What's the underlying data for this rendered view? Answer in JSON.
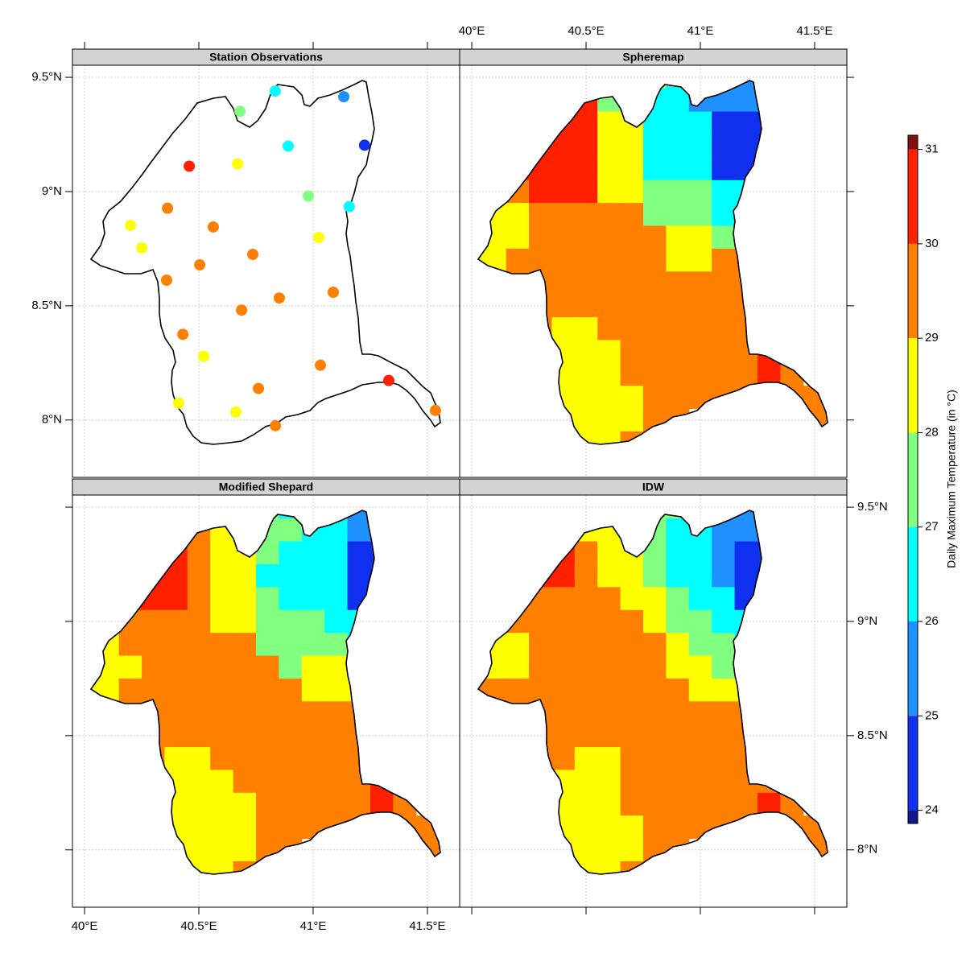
{
  "chart_data": {
    "type": "map-panels",
    "xlim": [
      39.947,
      41.641
    ],
    "ylim": [
      7.749,
      9.553
    ],
    "xticks": [
      {
        "value": 40,
        "label": "40°E"
      },
      {
        "value": 40.5,
        "label": "40.5°E"
      },
      {
        "value": 41,
        "label": "41°E"
      },
      {
        "value": 41.5,
        "label": "41.5°E"
      }
    ],
    "yticks": [
      {
        "value": 8,
        "label": "8°N"
      },
      {
        "value": 8.5,
        "label": "8.5°N"
      },
      {
        "value": 9,
        "label": "9°N"
      },
      {
        "value": 9.5,
        "label": "9.5°N"
      }
    ],
    "grid": true,
    "colorbar": {
      "label": "Daily Maximum Temperature (in °C)",
      "breaks": [
        23.86,
        24,
        25,
        26,
        27,
        28,
        29,
        30,
        31,
        31.15
      ],
      "colors": [
        "#10188c",
        "#1030f0",
        "#1e90ff",
        "#00ffff",
        "#80ff80",
        "#ffff00",
        "#ff8000",
        "#ff2000",
        "#801010"
      ],
      "ticks": [
        24,
        25,
        26,
        27,
        28,
        29,
        30,
        31
      ]
    },
    "grid_lon": [
      40,
      40.1,
      40.2,
      40.3,
      40.4,
      40.5,
      40.6,
      40.7,
      40.8,
      40.9,
      41,
      41.1,
      41.2,
      41.3,
      41.4,
      41.5
    ],
    "grid_lat": [
      9.5,
      9.4,
      9.3,
      9.2,
      9.1,
      9,
      8.9,
      8.8,
      8.7,
      8.6,
      8.5,
      8.4,
      8.3,
      8.2,
      8.1,
      8,
      7.9
    ],
    "panels": [
      {
        "title": "Station Observations",
        "type": "scatter",
        "lon": [
          40.834,
          41.134,
          40.68,
          40.891,
          41.225,
          40.458,
          40.669,
          40.979,
          41.158,
          40.363,
          40.201,
          40.563,
          41.025,
          40.25,
          40.736,
          40.504,
          40.359,
          41.088,
          40.852,
          40.687,
          40.43,
          40.521,
          41.032,
          41.331,
          40.761,
          40.412,
          40.662,
          40.835,
          41.535
        ],
        "lat": [
          9.44,
          9.415,
          9.351,
          9.199,
          9.203,
          9.111,
          9.121,
          8.98,
          8.934,
          8.927,
          8.852,
          8.845,
          8.799,
          8.753,
          8.725,
          8.679,
          8.612,
          8.559,
          8.534,
          8.481,
          8.375,
          8.279,
          8.24,
          8.173,
          8.138,
          8.074,
          8.035,
          7.975,
          8.042
        ],
        "values": [
          26.5,
          25.5,
          27.5,
          26.5,
          24.5,
          30.5,
          28.5,
          27.5,
          26.5,
          29.5,
          28.5,
          29.5,
          28.5,
          28.5,
          29.5,
          29.5,
          29.5,
          29.5,
          29.5,
          29.5,
          29.5,
          28.5,
          29.5,
          30.5,
          29.5,
          28.5,
          28.5,
          29.5,
          29.5
        ]
      },
      {
        "title": "Spheremap",
        "type": "raster",
        "z": [
          [
            null,
            null,
            null,
            null,
            null,
            null,
            27.5,
            27.5,
            27.5,
            26.5,
            26.5,
            25.5,
            25.5,
            null,
            null,
            null
          ],
          [
            null,
            null,
            null,
            null,
            30.5,
            30.5,
            27.5,
            27.5,
            26.5,
            26.5,
            25.5,
            25.5,
            25.5,
            null,
            null,
            null
          ],
          [
            null,
            null,
            null,
            30.5,
            30.5,
            30.5,
            28.5,
            28.5,
            26.5,
            26.5,
            26.5,
            24.5,
            24.5,
            24.5,
            null,
            null
          ],
          [
            null,
            null,
            30.5,
            30.5,
            30.5,
            30.5,
            28.5,
            28.5,
            26.5,
            26.5,
            26.5,
            24.5,
            24.5,
            24.5,
            null,
            null
          ],
          [
            null,
            null,
            30.5,
            30.5,
            30.5,
            30.5,
            28.5,
            28.5,
            26.5,
            26.5,
            26.5,
            24.5,
            24.5,
            24.5,
            null,
            null
          ],
          [
            null,
            null,
            29.5,
            30.5,
            30.5,
            30.5,
            28.5,
            28.5,
            27.5,
            27.5,
            27.5,
            26.5,
            26.5,
            26.5,
            null,
            null
          ],
          [
            null,
            28.5,
            28.5,
            29.5,
            29.5,
            29.5,
            29.5,
            29.5,
            27.5,
            27.5,
            27.5,
            26.5,
            26.5,
            null,
            null,
            null
          ],
          [
            28.5,
            28.5,
            28.5,
            29.5,
            29.5,
            29.5,
            29.5,
            29.5,
            29.5,
            28.5,
            28.5,
            27.5,
            27.5,
            null,
            null,
            null
          ],
          [
            28.5,
            28.5,
            29.5,
            29.5,
            29.5,
            29.5,
            29.5,
            29.5,
            29.5,
            28.5,
            28.5,
            29.5,
            29.5,
            null,
            null,
            null
          ],
          [
            null,
            null,
            29.5,
            29.5,
            29.5,
            29.5,
            29.5,
            29.5,
            29.5,
            29.5,
            29.5,
            29.5,
            29.5,
            null,
            null,
            null
          ],
          [
            null,
            null,
            null,
            29.5,
            29.5,
            29.5,
            29.5,
            29.5,
            29.5,
            29.5,
            29.5,
            29.5,
            29.5,
            null,
            null,
            null
          ],
          [
            null,
            null,
            null,
            29.5,
            28.5,
            28.5,
            29.5,
            29.5,
            29.5,
            29.5,
            29.5,
            29.5,
            29.5,
            null,
            null,
            null
          ],
          [
            null,
            null,
            null,
            28.5,
            28.5,
            28.5,
            28.5,
            29.5,
            29.5,
            29.5,
            29.5,
            29.5,
            29.5,
            30.5,
            null,
            null
          ],
          [
            null,
            null,
            null,
            28.5,
            28.5,
            28.5,
            28.5,
            29.5,
            29.5,
            29.5,
            29.5,
            29.5,
            29.5,
            30.5,
            29.5,
            null
          ],
          [
            null,
            null,
            null,
            28.5,
            28.5,
            28.5,
            28.5,
            28.5,
            29.5,
            29.5,
            29.5,
            29.5,
            29.5,
            29.5,
            29.5,
            29.5
          ],
          [
            null,
            null,
            null,
            28.5,
            28.5,
            28.5,
            28.5,
            28.5,
            29.5,
            29.5,
            null,
            null,
            null,
            null,
            null,
            29.5
          ],
          [
            null,
            null,
            null,
            null,
            28.5,
            28.5,
            28.5,
            29.5,
            null,
            null,
            null,
            null,
            null,
            null,
            null,
            null
          ]
        ]
      },
      {
        "title": "Modified Shepard",
        "type": "raster",
        "z": [
          [
            null,
            null,
            null,
            null,
            null,
            null,
            null,
            27.5,
            27.5,
            26.5,
            null,
            null,
            25.5,
            25.5,
            null,
            null
          ],
          [
            null,
            null,
            null,
            null,
            30.5,
            29.5,
            28.5,
            27.5,
            27.5,
            27.5,
            26.5,
            26.5,
            25.5,
            25.5,
            null,
            null
          ],
          [
            null,
            null,
            null,
            30.5,
            30.5,
            29.5,
            28.5,
            28.5,
            27.5,
            26.5,
            26.5,
            26.5,
            24.5,
            24.5,
            null,
            null
          ],
          [
            null,
            null,
            30.5,
            30.5,
            30.5,
            29.5,
            28.5,
            28.5,
            26.5,
            26.5,
            26.5,
            26.5,
            24.5,
            24.5,
            null,
            null
          ],
          [
            null,
            null,
            30.5,
            30.5,
            30.5,
            29.5,
            28.5,
            28.5,
            27.5,
            26.5,
            26.5,
            26.5,
            24.5,
            24.5,
            null,
            null
          ],
          [
            null,
            null,
            29.5,
            29.5,
            29.5,
            29.5,
            28.5,
            28.5,
            27.5,
            27.5,
            27.5,
            26.5,
            26.5,
            26.5,
            null,
            null
          ],
          [
            null,
            28.5,
            29.5,
            29.5,
            29.5,
            29.5,
            29.5,
            29.5,
            27.5,
            27.5,
            27.5,
            27.5,
            26.5,
            null,
            null,
            null
          ],
          [
            28.5,
            28.5,
            28.5,
            29.5,
            29.5,
            29.5,
            29.5,
            29.5,
            29.5,
            27.5,
            28.5,
            28.5,
            27.5,
            null,
            null,
            null
          ],
          [
            28.5,
            28.5,
            29.5,
            29.5,
            29.5,
            29.5,
            29.5,
            29.5,
            29.5,
            29.5,
            28.5,
            28.5,
            28.5,
            null,
            null,
            null
          ],
          [
            null,
            null,
            29.5,
            29.5,
            29.5,
            29.5,
            29.5,
            29.5,
            29.5,
            29.5,
            29.5,
            29.5,
            29.5,
            null,
            null,
            null
          ],
          [
            null,
            null,
            null,
            29.5,
            29.5,
            29.5,
            29.5,
            29.5,
            29.5,
            29.5,
            29.5,
            29.5,
            29.5,
            null,
            null,
            null
          ],
          [
            null,
            null,
            null,
            29.5,
            28.5,
            28.5,
            29.5,
            29.5,
            29.5,
            29.5,
            29.5,
            29.5,
            29.5,
            null,
            null,
            null
          ],
          [
            null,
            null,
            null,
            28.5,
            28.5,
            28.5,
            28.5,
            29.5,
            29.5,
            29.5,
            29.5,
            29.5,
            29.5,
            30.5,
            29.5,
            null
          ],
          [
            null,
            null,
            null,
            28.5,
            28.5,
            28.5,
            28.5,
            28.5,
            29.5,
            29.5,
            29.5,
            29.5,
            29.5,
            30.5,
            29.5,
            null
          ],
          [
            null,
            null,
            null,
            28.5,
            28.5,
            28.5,
            28.5,
            28.5,
            29.5,
            29.5,
            29.5,
            29.5,
            29.5,
            29.5,
            29.5,
            29.5
          ],
          [
            null,
            null,
            null,
            28.5,
            28.5,
            28.5,
            28.5,
            28.5,
            29.5,
            29.5,
            null,
            null,
            null,
            null,
            null,
            29.5
          ],
          [
            null,
            null,
            null,
            null,
            28.5,
            28.5,
            28.5,
            29.5,
            null,
            null,
            null,
            null,
            null,
            null,
            null,
            null
          ]
        ]
      },
      {
        "title": "IDW",
        "type": "raster",
        "z": [
          [
            null,
            null,
            null,
            null,
            null,
            null,
            null,
            null,
            27.5,
            27.5,
            null,
            null,
            25.5,
            null,
            null,
            null
          ],
          [
            null,
            null,
            null,
            null,
            28.5,
            28.5,
            28.5,
            27.5,
            27.5,
            26.5,
            26.5,
            25.5,
            25.5,
            25.5,
            null,
            null
          ],
          [
            null,
            null,
            null,
            30.5,
            30.5,
            29.5,
            28.5,
            28.5,
            27.5,
            26.5,
            26.5,
            25.5,
            24.5,
            24.5,
            null,
            null
          ],
          [
            null,
            null,
            30.5,
            30.5,
            30.5,
            29.5,
            28.5,
            28.5,
            27.5,
            26.5,
            26.5,
            25.5,
            24.5,
            24.5,
            null,
            null
          ],
          [
            null,
            null,
            29.5,
            29.5,
            29.5,
            29.5,
            29.5,
            28.5,
            28.5,
            27.5,
            26.5,
            26.5,
            24.5,
            null,
            null,
            null
          ],
          [
            null,
            null,
            29.5,
            29.5,
            29.5,
            29.5,
            29.5,
            29.5,
            28.5,
            27.5,
            27.5,
            26.5,
            26.5,
            null,
            null,
            null
          ],
          [
            null,
            28.5,
            28.5,
            29.5,
            29.5,
            29.5,
            29.5,
            29.5,
            29.5,
            28.5,
            27.5,
            27.5,
            26.5,
            null,
            null,
            null
          ],
          [
            29.5,
            28.5,
            28.5,
            29.5,
            29.5,
            29.5,
            29.5,
            29.5,
            29.5,
            28.5,
            28.5,
            27.5,
            null,
            null,
            null,
            null
          ],
          [
            29.5,
            29.5,
            29.5,
            29.5,
            29.5,
            29.5,
            29.5,
            29.5,
            29.5,
            29.5,
            28.5,
            28.5,
            28.5,
            null,
            null,
            null
          ],
          [
            null,
            null,
            29.5,
            29.5,
            29.5,
            29.5,
            29.5,
            29.5,
            29.5,
            29.5,
            29.5,
            29.5,
            29.5,
            null,
            null,
            null
          ],
          [
            null,
            null,
            null,
            29.5,
            29.5,
            29.5,
            29.5,
            29.5,
            29.5,
            29.5,
            29.5,
            29.5,
            29.5,
            null,
            null,
            null
          ],
          [
            null,
            null,
            null,
            29.5,
            29.5,
            28.5,
            28.5,
            29.5,
            29.5,
            29.5,
            29.5,
            29.5,
            29.5,
            null,
            null,
            null
          ],
          [
            null,
            null,
            null,
            28.5,
            28.5,
            28.5,
            28.5,
            29.5,
            29.5,
            29.5,
            29.5,
            29.5,
            29.5,
            29.5,
            null,
            null
          ],
          [
            null,
            null,
            null,
            28.5,
            28.5,
            28.5,
            28.5,
            29.5,
            29.5,
            29.5,
            29.5,
            29.5,
            29.5,
            30.5,
            29.5,
            null
          ],
          [
            null,
            null,
            null,
            28.5,
            28.5,
            28.5,
            28.5,
            28.5,
            29.5,
            29.5,
            29.5,
            29.5,
            29.5,
            29.5,
            29.5,
            29.5
          ],
          [
            null,
            null,
            null,
            28.5,
            28.5,
            28.5,
            28.5,
            28.5,
            29.5,
            29.5,
            null,
            null,
            null,
            null,
            null,
            29.5
          ],
          [
            null,
            null,
            null,
            null,
            28.5,
            28.5,
            28.5,
            29.5,
            null,
            null,
            null,
            null,
            null,
            null,
            null,
            null
          ]
        ]
      }
    ]
  }
}
